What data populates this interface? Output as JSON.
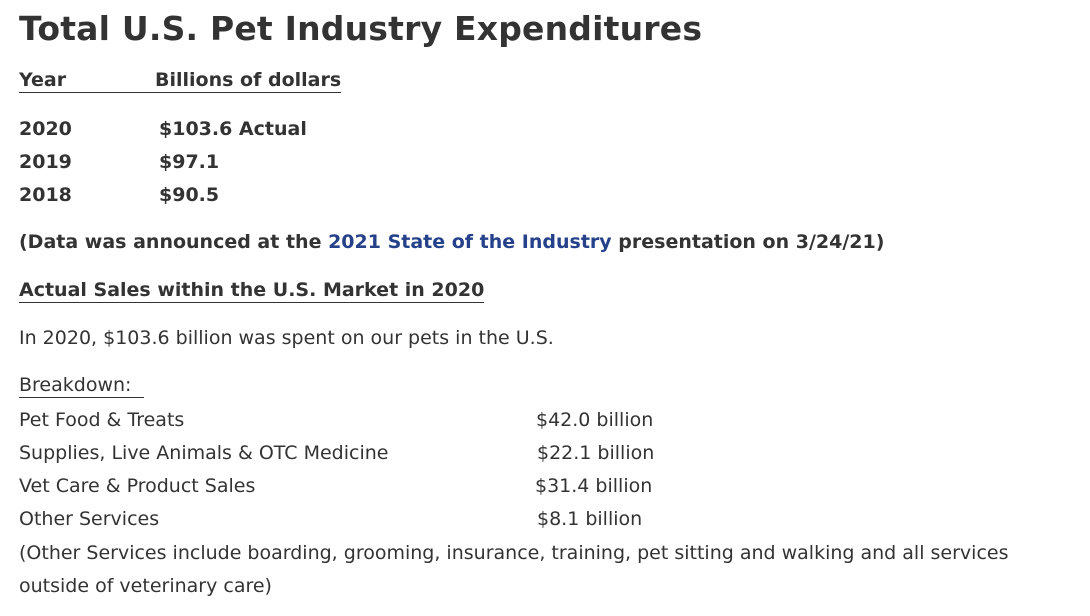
{
  "title": "Total U.S. Pet Industry Expenditures",
  "table_header": {
    "year": "Year",
    "billions": "Billions of dollars"
  },
  "years": [
    {
      "year": "2020",
      "value": "$103.6 Actual"
    },
    {
      "year": "2019",
      "value": "$97.1"
    },
    {
      "year": "2018",
      "value": "$90.5"
    }
  ],
  "note": {
    "prefix": "(Data was announced at the ",
    "link_text": "2021 State of the Industry",
    "suffix": " presentation on 3/24/21)",
    "link_color": "#24418a"
  },
  "section_title": "Actual Sales within the U.S. Market in 2020",
  "summary": "In 2020, $103.6 billion was spent on our pets in the U.S.",
  "breakdown_label": "Breakdown:  ",
  "breakdown": [
    {
      "category": "Pet Food & Treats",
      "amount": "$42.0 billion"
    },
    {
      "category": "Supplies, Live Animals & OTC Medicine",
      "amount": "$22.1 billion"
    },
    {
      "category": "Vet Care & Product Sales",
      "amount": "$31.4 billion"
    },
    {
      "category": "Other Services",
      "amount": "$8.1 billion"
    }
  ],
  "footnote": "(Other Services include boarding, grooming, insurance, training, pet sitting and walking and all services outside of veterinary care)"
}
